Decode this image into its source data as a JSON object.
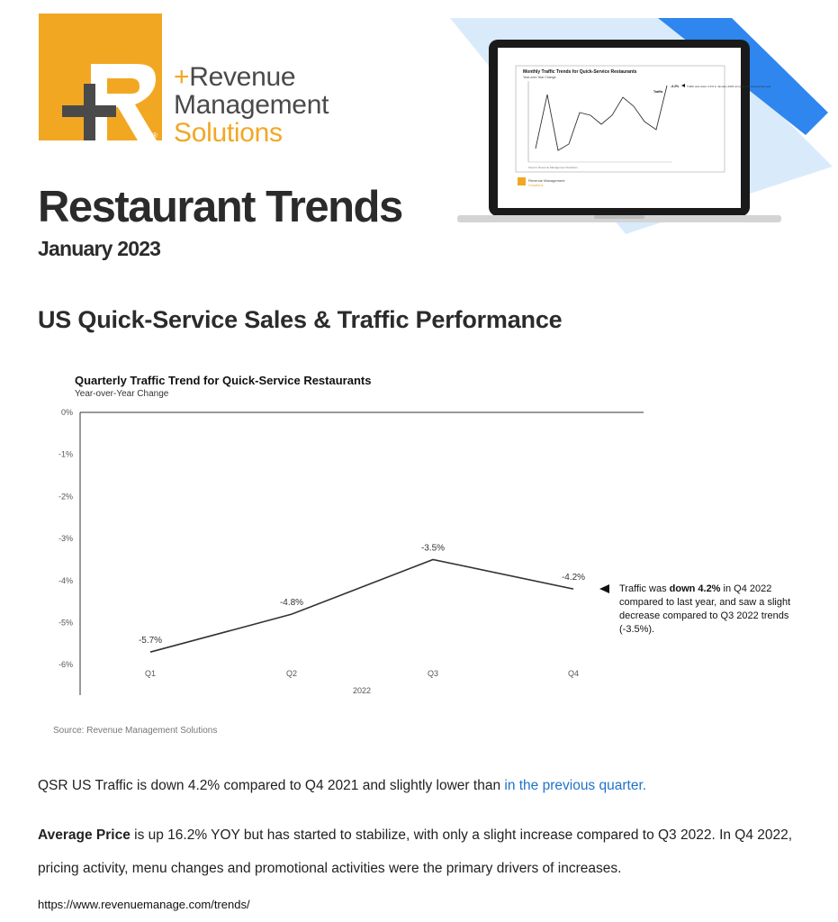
{
  "brand": {
    "logo_letter": "R",
    "name_line1": "Revenue",
    "name_line2": "Management",
    "name_line3": "Solutions",
    "registered_mark": "®",
    "colors": {
      "orange": "#f2a723",
      "dark_gray": "#4a4a4a",
      "blue": "#1f73c8",
      "accent_blue": "#2f86ef"
    }
  },
  "hero": {
    "screen_title": "Monthly Traffic Trends for Quick-Service Restaurants",
    "screen_subtitle": "Year-over-Year Change",
    "screen_series_label": "Traffic",
    "screen_value": "-4.2%",
    "screen_note": "Traffic was down 4.2% in January 2023 compared to January last year.",
    "screen_source": "Source: Revenue Management Solutions",
    "screen_logo_line1": "Revenue Management",
    "screen_logo_line2": "Solutions"
  },
  "page": {
    "title": "Restaurant Trends",
    "date": "January 2023",
    "section_title": "US Quick-Service Sales & Traffic Performance"
  },
  "chart_data": {
    "type": "line",
    "title": "Quarterly Traffic Trend for Quick-Service Restaurants",
    "subtitle": "Year-over-Year Change",
    "categories": [
      "Q1",
      "Q2",
      "Q3",
      "Q4"
    ],
    "xlabel": "2022",
    "ylabel": "",
    "values": [
      -5.7,
      -4.8,
      -3.5,
      -4.2
    ],
    "data_labels": [
      "-5.7%",
      "-4.8%",
      "-3.5%",
      "-4.2%"
    ],
    "y_ticks": [
      "0%",
      "-1%",
      "-2%",
      "-3%",
      "-4%",
      "-5%",
      "-6%"
    ],
    "ylim": [
      -6,
      0
    ],
    "grid": false,
    "line_color": "#333333",
    "annotation": {
      "pre": "Traffic was ",
      "bold": "down 4.2%",
      "post": " in Q4 2022 compared to last year, and saw a slight decrease compared to Q3 2022 trends (-3.5%)."
    },
    "source": "Source: Revenue Management Solutions"
  },
  "body": {
    "para1_text": "QSR US Traffic is down 4.2% compared to Q4 2021 and slightly lower than ",
    "para1_link": "in the previous quarter.",
    "para2_bold": "Average Price",
    "para2_text": " is up 16.2% YOY but has started to stabilize, with only a slight increase compared to Q3 2022. In Q4 2022, pricing activity, menu changes and promotional activities were the primary drivers of increases."
  },
  "footer": {
    "url": "https://www.revenuemanage.com/trends/"
  }
}
